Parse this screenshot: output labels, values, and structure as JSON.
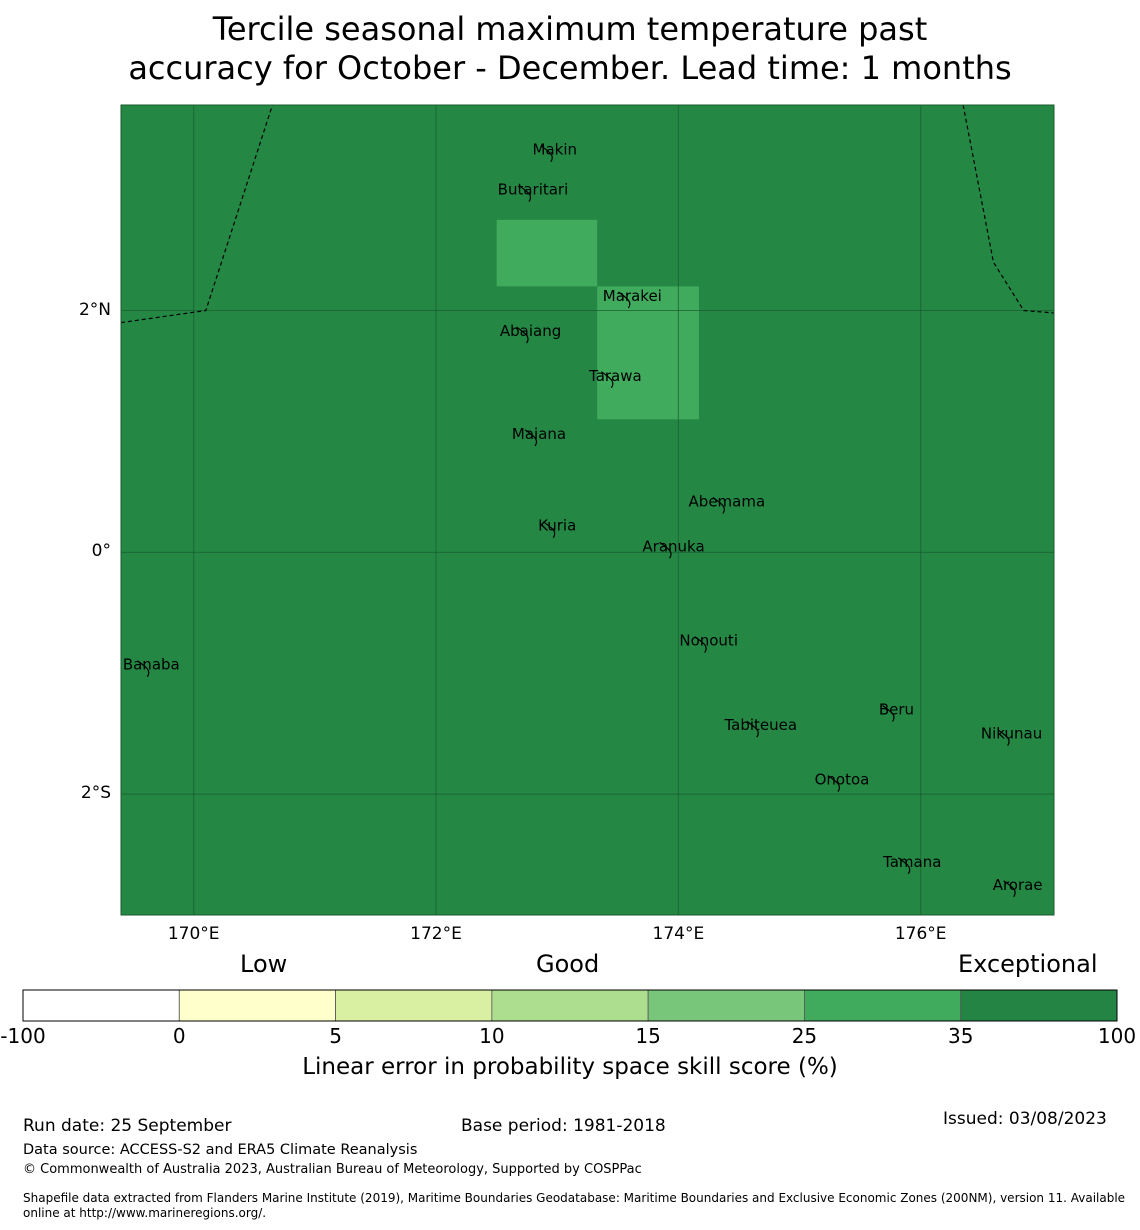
{
  "title": {
    "line1": "Tercile seasonal maximum temperature past",
    "line2": "accuracy for October - December. Lead time: 1 months"
  },
  "map": {
    "lon_range": [
      169.4,
      177.1
    ],
    "lat_range": [
      -3.0,
      3.7
    ],
    "base_color": "#248744",
    "highlight_color": "#40aa5d",
    "highlight_cells": [
      {
        "lon": [
          172.5,
          173.33
        ],
        "lat": [
          2.2,
          2.75
        ]
      },
      {
        "lon": [
          173.33,
          174.17
        ],
        "lat": [
          1.1,
          2.2
        ]
      }
    ],
    "gridlines": {
      "lon": [
        170,
        172,
        174,
        176
      ],
      "lat": [
        -2,
        0,
        2
      ]
    },
    "lon_ticks": [
      {
        "value": 170,
        "label": "170°E"
      },
      {
        "value": 172,
        "label": "172°E"
      },
      {
        "value": 174,
        "label": "174°E"
      },
      {
        "value": 176,
        "label": "176°E"
      }
    ],
    "lat_ticks": [
      {
        "value": 2,
        "label": "2°N"
      },
      {
        "value": 0,
        "label": "0°"
      },
      {
        "value": -2,
        "label": "2°S"
      }
    ],
    "boundary_lines": [
      [
        [
          169.4,
          1.9
        ],
        [
          170.1,
          2.0
        ],
        [
          170.65,
          3.7
        ]
      ],
      [
        [
          176.35,
          3.7
        ],
        [
          176.6,
          2.4
        ],
        [
          176.85,
          2.0
        ],
        [
          177.1,
          1.98
        ]
      ]
    ],
    "islands": [
      {
        "name": "Makin",
        "lon": 172.98,
        "lat": 3.33
      },
      {
        "name": "Butaritari",
        "lon": 172.8,
        "lat": 3.0
      },
      {
        "name": "Marakei",
        "lon": 173.62,
        "lat": 2.12
      },
      {
        "name": "Abaiang",
        "lon": 172.78,
        "lat": 1.83
      },
      {
        "name": "Tarawa",
        "lon": 173.48,
        "lat": 1.46
      },
      {
        "name": "Maiana",
        "lon": 172.85,
        "lat": 0.98
      },
      {
        "name": "Abemama",
        "lon": 174.4,
        "lat": 0.42
      },
      {
        "name": "Kuria",
        "lon": 173.0,
        "lat": 0.22
      },
      {
        "name": "Aranuka",
        "lon": 173.96,
        "lat": 0.05
      },
      {
        "name": "Nonouti",
        "lon": 174.25,
        "lat": -0.73
      },
      {
        "name": "Banaba",
        "lon": 169.65,
        "lat": -0.93
      },
      {
        "name": "Beru",
        "lon": 175.8,
        "lat": -1.3
      },
      {
        "name": "Tabiteuea",
        "lon": 174.68,
        "lat": -1.43
      },
      {
        "name": "Nikunau",
        "lon": 176.75,
        "lat": -1.5
      },
      {
        "name": "Onotoa",
        "lon": 175.35,
        "lat": -1.88
      },
      {
        "name": "Tamana",
        "lon": 175.93,
        "lat": -2.56
      },
      {
        "name": "Arorae",
        "lon": 176.8,
        "lat": -2.75
      }
    ]
  },
  "colorbar": {
    "categories": [
      "Low",
      "Good",
      "Exceptional"
    ],
    "bounds": [
      "-100",
      "0",
      "5",
      "10",
      "15",
      "25",
      "35",
      "100"
    ],
    "colors": [
      "#ffffff",
      "#ffffcc",
      "#d9f0a3",
      "#addd8e",
      "#78c679",
      "#41ab5d",
      "#238443"
    ],
    "label": "Linear error in probability space skill score (%)"
  },
  "footer": {
    "run_date": "Run date: 25 September",
    "base_period": "Base period: 1981-2018",
    "issued": "Issued: 03/08/2023",
    "data_source": "Data source: ACCESS-S2 and ERA5 Climate Reanalysis",
    "copyright": "© Commonwealth of Australia 2023, Australian Bureau of Meteorology, Supported by COSPPac",
    "shapefile_line1": "Shapefile data extracted from Flanders Marine Institute (2019), Maritime Boundaries Geodatabase: Maritime Boundaries and Exclusive Economic Zones (200NM), version 11. Available",
    "shapefile_line2": "online at http://www.marineregions.org/."
  }
}
